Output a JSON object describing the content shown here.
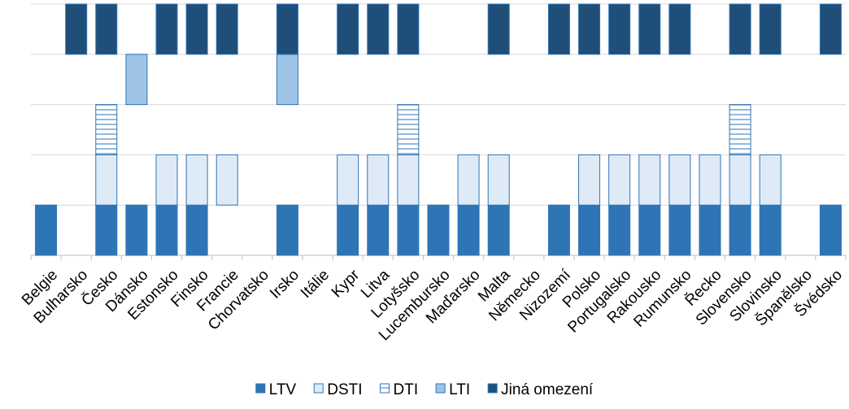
{
  "chart_data": {
    "type": "slot-bar",
    "categories": [
      "Belgie",
      "Bulharsko",
      "Česko",
      "Dánsko",
      "Estonsko",
      "Finsko",
      "Francie",
      "Chorvatsko",
      "Irsko",
      "Itálie",
      "Kypr",
      "Litva",
      "Lotyšsko",
      "Lucembursko",
      "Maďarsko",
      "Malta",
      "Německo",
      "Nizozemí",
      "Polsko",
      "Portugalsko",
      "Rakousko",
      "Rumunsko",
      "Řecko",
      "Slovensko",
      "Slovinsko",
      "Španělsko",
      "Švédsko"
    ],
    "series": [
      {
        "name": "LTV",
        "color": "#2e75b6",
        "fill": "#2e75b6",
        "values": [
          1,
          0,
          1,
          1,
          1,
          1,
          0,
          0,
          1,
          0,
          1,
          1,
          1,
          1,
          1,
          1,
          0,
          1,
          1,
          1,
          1,
          1,
          1,
          1,
          1,
          0,
          1
        ]
      },
      {
        "name": "DSTI",
        "color": "#2e75b6",
        "fill": "#deebf7",
        "values": [
          0,
          0,
          1,
          0,
          1,
          1,
          1,
          0,
          0,
          0,
          1,
          1,
          1,
          0,
          1,
          1,
          0,
          0,
          1,
          1,
          1,
          1,
          1,
          1,
          1,
          0,
          0
        ]
      },
      {
        "name": "DTI",
        "color": "#2e75b6",
        "fill": "#ffffff",
        "pattern": "horizontal-lines",
        "values": [
          0,
          0,
          1,
          0,
          0,
          0,
          0,
          0,
          0,
          0,
          0,
          0,
          1,
          0,
          0,
          0,
          0,
          0,
          0,
          0,
          0,
          0,
          0,
          1,
          0,
          0,
          0
        ]
      },
      {
        "name": "LTI",
        "color": "#2e75b6",
        "fill": "#9dc3e6",
        "values": [
          0,
          0,
          0,
          1,
          0,
          0,
          0,
          0,
          1,
          0,
          0,
          0,
          0,
          0,
          0,
          0,
          0,
          0,
          0,
          0,
          0,
          0,
          0,
          0,
          0,
          0,
          0
        ]
      },
      {
        "name": "Jiná omezení",
        "color": "#2e75b6",
        "fill": "#1f4e79",
        "values": [
          0,
          1,
          1,
          0,
          1,
          1,
          1,
          0,
          1,
          0,
          1,
          1,
          1,
          0,
          0,
          1,
          0,
          1,
          1,
          1,
          1,
          1,
          0,
          1,
          1,
          0,
          1
        ]
      }
    ],
    "ylim": [
      0,
      5
    ],
    "yticks": [
      0,
      1,
      2,
      3,
      4,
      5
    ],
    "grid": true,
    "legend": "bottom"
  }
}
